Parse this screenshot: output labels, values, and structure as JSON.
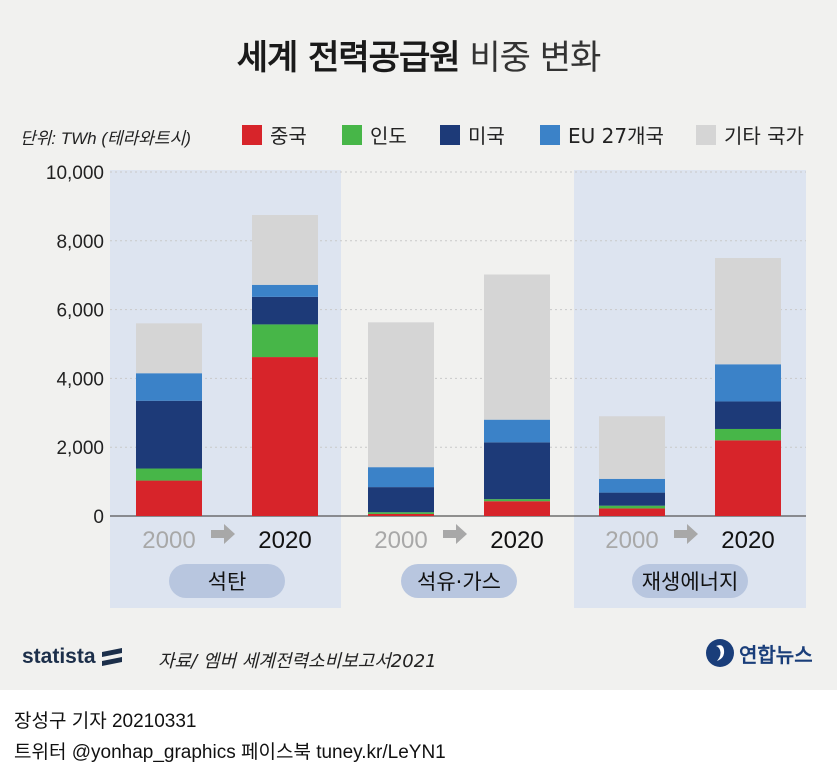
{
  "title": {
    "bold": "세계 전력공급원",
    "light": "비중 변화"
  },
  "legend": {
    "unit": "단위: TWh (테라와트시)",
    "items": [
      {
        "label": "중국",
        "color": "#d7242a"
      },
      {
        "label": "인도",
        "color": "#47b648"
      },
      {
        "label": "미국",
        "color": "#1d3a78"
      },
      {
        "label": "EU 27개국",
        "color": "#3b82c8"
      },
      {
        "label": "기타 국가",
        "color": "#d5d5d5"
      }
    ]
  },
  "chart_data": {
    "type": "bar",
    "stacked": true,
    "ylim": [
      0,
      10000
    ],
    "yticks": [
      "0",
      "2,000",
      "4,000",
      "6,000",
      "8,000",
      "10,000"
    ],
    "groups": [
      {
        "name": "석탄",
        "highlight": true,
        "years": [
          "2000",
          "2020"
        ]
      },
      {
        "name": "석유·가스",
        "highlight": false,
        "years": [
          "2000",
          "2020"
        ]
      },
      {
        "name": "재생에너지",
        "highlight": true,
        "years": [
          "2000",
          "2020"
        ]
      }
    ],
    "series": [
      {
        "name": "중국",
        "values": [
          1030,
          4620,
          60,
          430,
          220,
          2200
        ]
      },
      {
        "name": "인도",
        "values": [
          350,
          950,
          50,
          60,
          80,
          330
        ]
      },
      {
        "name": "미국",
        "values": [
          1970,
          800,
          730,
          1650,
          380,
          800
        ]
      },
      {
        "name": "EU 27개국",
        "values": [
          800,
          350,
          580,
          660,
          400,
          1080
        ]
      },
      {
        "name": "기타 국가",
        "values": [
          1450,
          2030,
          4210,
          4220,
          1820,
          3090
        ]
      }
    ]
  },
  "footer": {
    "brand": "statista",
    "source": "자료/ 엠버 세계전력소비보고서2021",
    "agency": "연합뉴스"
  },
  "credits": {
    "line1": "장성구 기자 20210331",
    "line2": "트위터 @yonhap_graphics  페이스북 tuney.kr/LeYN1"
  },
  "arrow_glyph": "➡"
}
